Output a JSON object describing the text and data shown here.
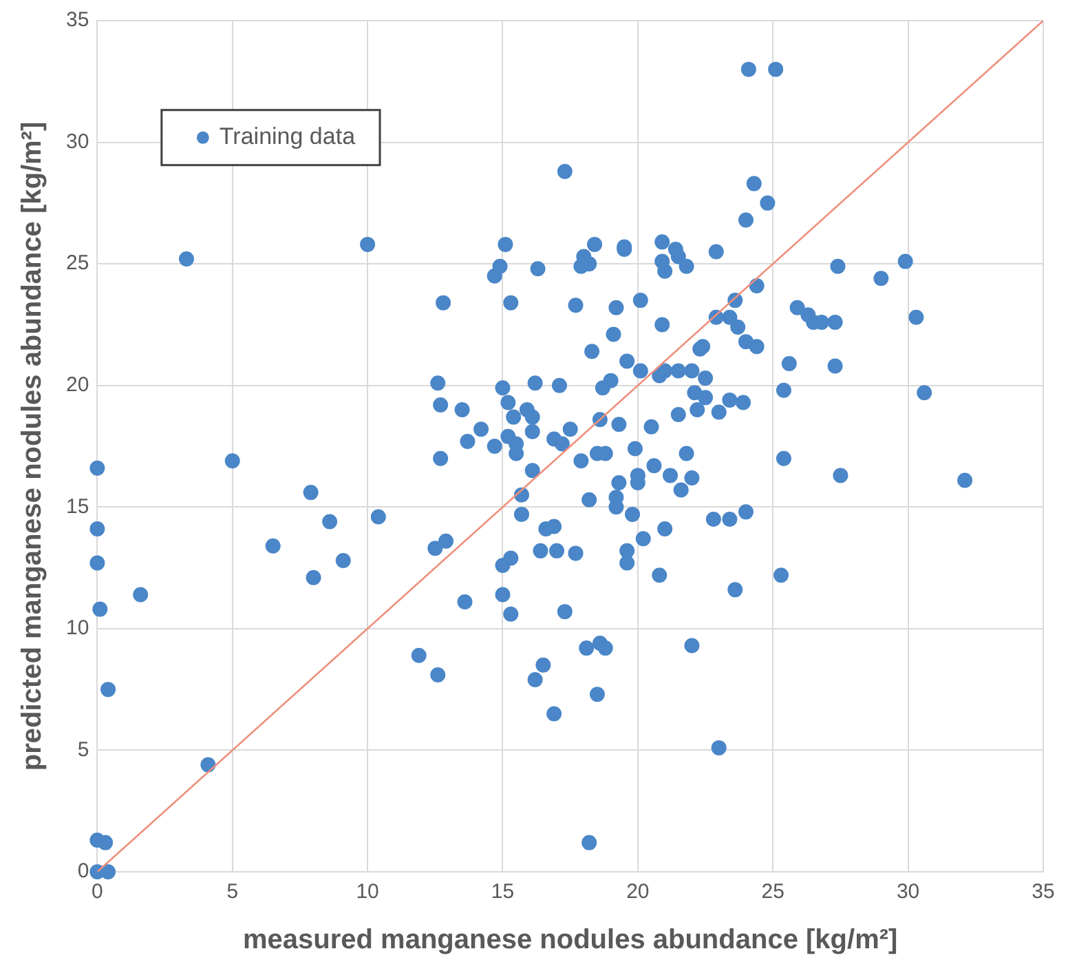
{
  "chart_data": {
    "type": "scatter",
    "xlabel": "measured manganese nodules abundance [kg/m²]",
    "ylabel": "predicted manganese nodules abundance [kg/m²]",
    "xlim": [
      0,
      35
    ],
    "ylim": [
      0,
      35
    ],
    "xticks": [
      0,
      5,
      10,
      15,
      20,
      25,
      30,
      35
    ],
    "yticks": [
      0,
      5,
      10,
      15,
      20,
      25,
      30,
      35
    ],
    "grid": true,
    "legend": "top left",
    "marker": "circle",
    "series": [
      {
        "name": "Training data",
        "color": "#4a86c8",
        "x": [
          0,
          0,
          0,
          0.1,
          0.4,
          0,
          0.3,
          0,
          0.4,
          1.6,
          3.3,
          4.1,
          5.0,
          6.5,
          7.9,
          8.0,
          8.6,
          9.1,
          10.0,
          10.4,
          11.9,
          12.5,
          12.6,
          12.6,
          12.7,
          12.7,
          12.8,
          12.9,
          13.6,
          13.5,
          13.7,
          14.2,
          14.7,
          14.7,
          14.9,
          15.1,
          15.0,
          15.0,
          15.0,
          15.2,
          15.2,
          15.3,
          15.3,
          15.3,
          15.4,
          15.5,
          15.5,
          15.7,
          15.7,
          15.9,
          16.1,
          16.1,
          16.1,
          16.2,
          16.2,
          16.3,
          16.4,
          16.6,
          16.5,
          16.9,
          16.9,
          16.9,
          17.0,
          17.1,
          17.2,
          17.3,
          17.3,
          17.5,
          17.7,
          17.7,
          17.9,
          17.9,
          18.0,
          18.1,
          18.2,
          18.2,
          18.2,
          18.3,
          18.4,
          18.5,
          18.5,
          18.6,
          18.6,
          18.7,
          18.8,
          18.8,
          19.0,
          19.1,
          19.2,
          19.2,
          19.2,
          19.3,
          19.3,
          19.5,
          19.5,
          19.6,
          19.6,
          19.6,
          19.8,
          19.9,
          20.0,
          20.0,
          20.1,
          20.1,
          20.2,
          20.5,
          20.6,
          20.8,
          20.8,
          20.9,
          20.9,
          20.9,
          21.0,
          21.0,
          21.0,
          21.2,
          21.4,
          21.5,
          21.5,
          21.5,
          21.6,
          21.8,
          21.8,
          22.0,
          22.0,
          22.0,
          22.1,
          22.2,
          22.3,
          22.4,
          22.5,
          22.5,
          22.8,
          22.9,
          22.9,
          23.0,
          23.0,
          23.4,
          23.4,
          23.4,
          23.6,
          23.6,
          23.7,
          23.9,
          24.0,
          24.0,
          24.0,
          24.1,
          24.3,
          24.4,
          24.4,
          24.8,
          25.1,
          25.3,
          25.4,
          25.4,
          25.6,
          25.9,
          26.3,
          26.5,
          26.8,
          27.3,
          27.3,
          27.4,
          27.5,
          29.0,
          29.9,
          30.3,
          30.6,
          32.1
        ],
        "values": [
          16.6,
          14.1,
          12.7,
          10.8,
          7.5,
          1.3,
          1.2,
          0,
          0,
          11.4,
          25.2,
          4.4,
          16.9,
          13.4,
          15.6,
          12.1,
          14.4,
          12.8,
          25.8,
          14.6,
          8.9,
          13.3,
          8.1,
          20.1,
          19.2,
          17.0,
          23.4,
          13.6,
          11.1,
          19.0,
          17.7,
          18.2,
          17.5,
          24.5,
          24.9,
          25.8,
          19.9,
          11.4,
          12.6,
          19.3,
          17.9,
          23.4,
          10.6,
          12.9,
          18.7,
          17.6,
          17.2,
          14.7,
          15.5,
          19.0,
          18.1,
          16.5,
          18.7,
          20.1,
          7.9,
          24.8,
          13.2,
          14.1,
          8.5,
          6.5,
          14.2,
          17.8,
          13.2,
          20.0,
          17.6,
          28.8,
          10.7,
          18.2,
          13.1,
          23.3,
          16.9,
          24.9,
          25.3,
          9.2,
          15.3,
          25.0,
          1.2,
          21.4,
          25.8,
          7.3,
          17.2,
          9.4,
          18.6,
          19.9,
          9.2,
          17.2,
          20.2,
          22.1,
          15.4,
          23.2,
          15.0,
          18.4,
          16.0,
          25.6,
          25.7,
          13.2,
          12.7,
          21.0,
          14.7,
          17.4,
          16.3,
          16.0,
          20.6,
          23.5,
          13.7,
          18.3,
          16.7,
          20.4,
          12.2,
          25.9,
          25.1,
          22.5,
          24.7,
          14.1,
          20.6,
          16.3,
          25.6,
          18.8,
          25.3,
          20.6,
          15.7,
          17.2,
          24.9,
          20.6,
          9.3,
          16.2,
          19.7,
          19.0,
          21.5,
          21.6,
          19.5,
          20.3,
          14.5,
          22.8,
          25.5,
          18.9,
          5.1,
          14.5,
          19.4,
          22.8,
          23.5,
          11.6,
          22.4,
          19.3,
          26.8,
          21.8,
          14.8,
          33.0,
          28.3,
          21.6,
          24.1,
          27.5,
          33.0,
          12.2,
          19.8,
          17.0,
          20.9,
          23.2,
          22.9,
          22.6,
          22.6,
          22.6,
          20.8,
          24.9,
          16.3,
          24.4,
          25.1,
          22.8,
          19.7,
          16.1
        ]
      },
      {
        "type": "line",
        "marker": "none",
        "color": "#ee8f7c",
        "x": [
          0,
          35
        ],
        "values": [
          0,
          35
        ]
      }
    ]
  }
}
